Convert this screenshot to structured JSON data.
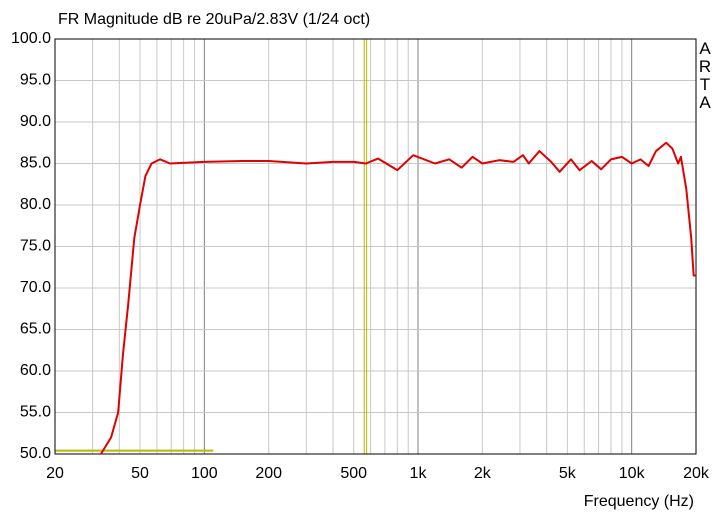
{
  "chart_data": {
    "type": "line",
    "title": "FR Magnitude dB re 20uPa/2.83V (1/24 oct)",
    "brand": "ARTA",
    "x_label": "Frequency (Hz)",
    "xscale": "log",
    "xlim": [
      20,
      20000
    ],
    "ylim": [
      50,
      100
    ],
    "grid": true,
    "xticks": [
      20,
      50,
      100,
      200,
      500,
      {
        "value": 1000,
        "label": "1k"
      },
      {
        "value": 2000,
        "label": "2k"
      },
      {
        "value": 5000,
        "label": "5k"
      },
      {
        "value": 10000,
        "label": "10k"
      },
      {
        "value": 20000,
        "label": "20k"
      }
    ],
    "minor_xgrid": [
      30,
      40,
      60,
      70,
      80,
      90,
      300,
      400,
      600,
      700,
      800,
      900,
      3000,
      4000,
      6000,
      7000,
      8000,
      9000
    ],
    "yticks": [
      {
        "value": 50,
        "label": "50.0"
      },
      {
        "value": 55,
        "label": "55.0"
      },
      {
        "value": 60,
        "label": "60.0"
      },
      {
        "value": 65,
        "label": "65.0"
      },
      {
        "value": 70,
        "label": "70.0"
      },
      {
        "value": 75,
        "label": "75.0"
      },
      {
        "value": 80,
        "label": "80.0"
      },
      {
        "value": 85,
        "label": "85.0"
      },
      {
        "value": 90,
        "label": "90.0"
      },
      {
        "value": 95,
        "label": "95.0"
      },
      {
        "value": 100,
        "label": "100.0"
      }
    ],
    "marker_color": "#b8b800",
    "vmarkers": [
      560,
      575
    ],
    "hmarker": {
      "y": 50.4,
      "x": [
        20,
        110
      ]
    },
    "series": [
      {
        "color": "#e00000",
        "x": [
          32.8,
          36.6,
          39.5,
          41.6,
          44,
          47,
          50,
          53,
          56.6,
          62,
          69,
          100,
          150,
          200,
          300,
          400,
          500,
          570,
          650,
          800,
          950,
          1200,
          1400,
          1600,
          1800,
          2000,
          2400,
          2800,
          3100,
          3300,
          3700,
          4200,
          4600,
          5200,
          5700,
          6500,
          7200,
          8000,
          9000,
          10000,
          11000,
          12000,
          13000,
          14500,
          15500,
          16500,
          17000,
          18000,
          19000,
          19500,
          20000
        ],
        "values": [
          50,
          52,
          55,
          62,
          68,
          76,
          80,
          83.5,
          85,
          85.5,
          85,
          85.2,
          85.3,
          85.3,
          85,
          85.2,
          85.2,
          85,
          85.6,
          84.2,
          86,
          85,
          85.5,
          84.5,
          85.8,
          85,
          85.4,
          85.2,
          86,
          85,
          86.5,
          85.2,
          84,
          85.5,
          84.2,
          85.3,
          84.3,
          85.5,
          85.8,
          85,
          85.5,
          84.7,
          86.5,
          87.5,
          86.8,
          85,
          85.8,
          82,
          76,
          71.5,
          71.5
        ]
      }
    ]
  }
}
